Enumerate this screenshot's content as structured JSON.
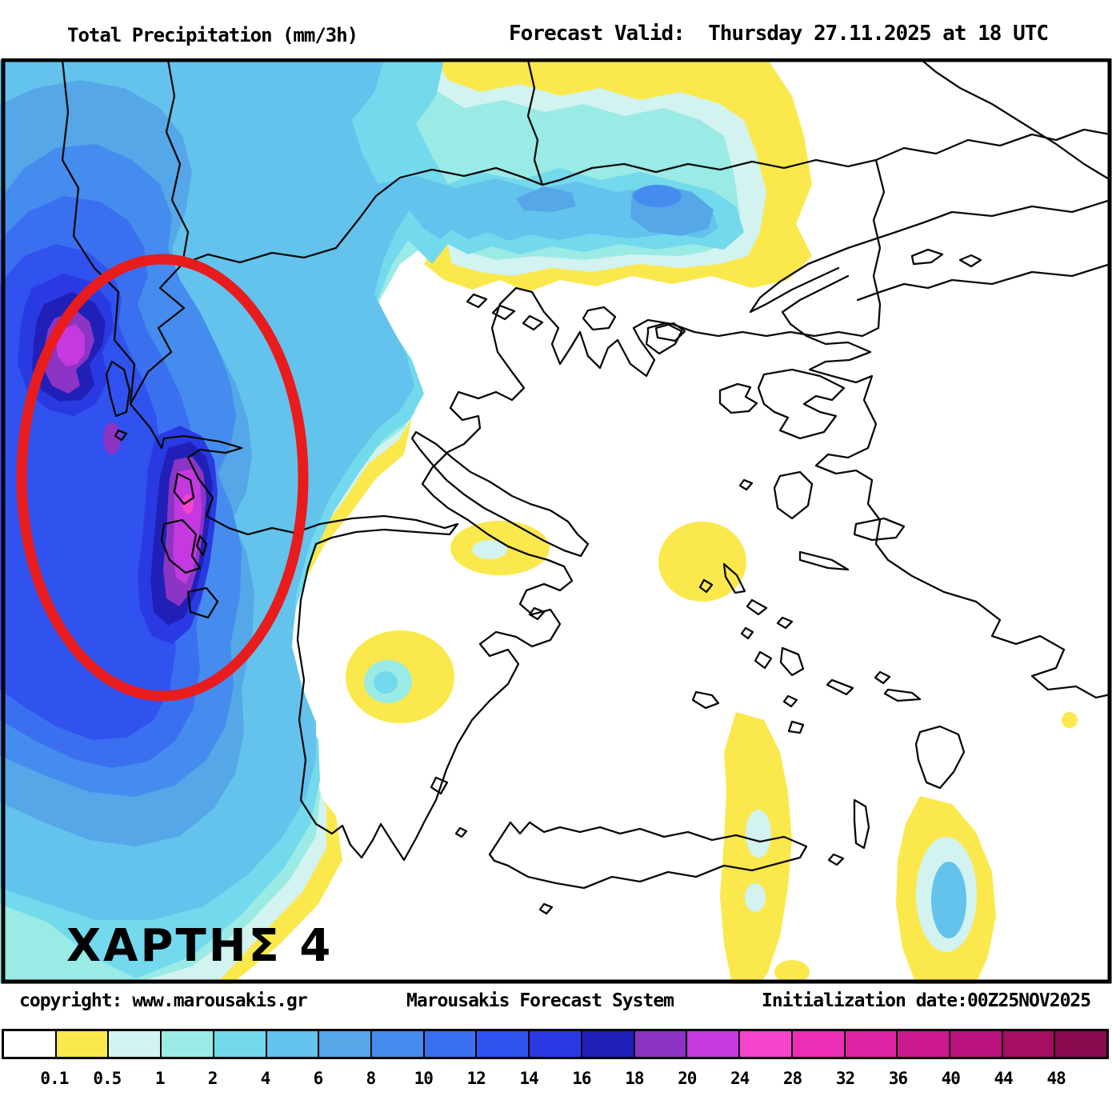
{
  "header": {
    "left_title": "Total Precipitation (mm/3h)",
    "right_title": "Forecast Valid:  Thursday 27.11.2025 at 18 UTC"
  },
  "map": {
    "label": "ΧΑΡΤΗΣ 4",
    "annotation": "red-ellipse-highlight-west-greece",
    "annotation_color": "#e81c1c",
    "border_color": "#000000",
    "sea_color": "#ffffff"
  },
  "footer": {
    "left": "copyright: www.marousakis.gr",
    "center": "Marousakis Forecast System",
    "right": "Initialization date:00Z25NOV2025"
  },
  "colorbar": {
    "units": "mm/3h",
    "ticks": [
      "0.1",
      "0.5",
      "1",
      "2",
      "4",
      "6",
      "8",
      "10",
      "12",
      "14",
      "16",
      "18",
      "20",
      "24",
      "28",
      "32",
      "36",
      "40",
      "44",
      "48"
    ],
    "cell_colors": [
      "#ffffff",
      "#fbe84c",
      "#d2f3f0",
      "#9aeae5",
      "#73d9ec",
      "#63c3ec",
      "#55a7e8",
      "#458cee",
      "#3a70f0",
      "#3052ee",
      "#2a3ae2",
      "#2020b8",
      "#8c34c4",
      "#c43ae0",
      "#f644cc",
      "#ec2eb6",
      "#dc24a2",
      "#cc1a8e",
      "#ba127c",
      "#a60e64",
      "#8a0a50"
    ]
  },
  "palette": {
    "yellow": "#fbe84c",
    "c1": "#d2f3f0",
    "c2": "#9aeae5",
    "c3": "#73d9ec",
    "c4": "#63c3ec",
    "b1": "#55a7e8",
    "b2": "#458cee",
    "b3": "#3a70f0",
    "b4": "#3052ee",
    "b5": "#2a3ae2",
    "navy": "#2020b8",
    "purple": "#8c34c4",
    "magenta": "#c43ae0",
    "pink": "#f644cc"
  }
}
